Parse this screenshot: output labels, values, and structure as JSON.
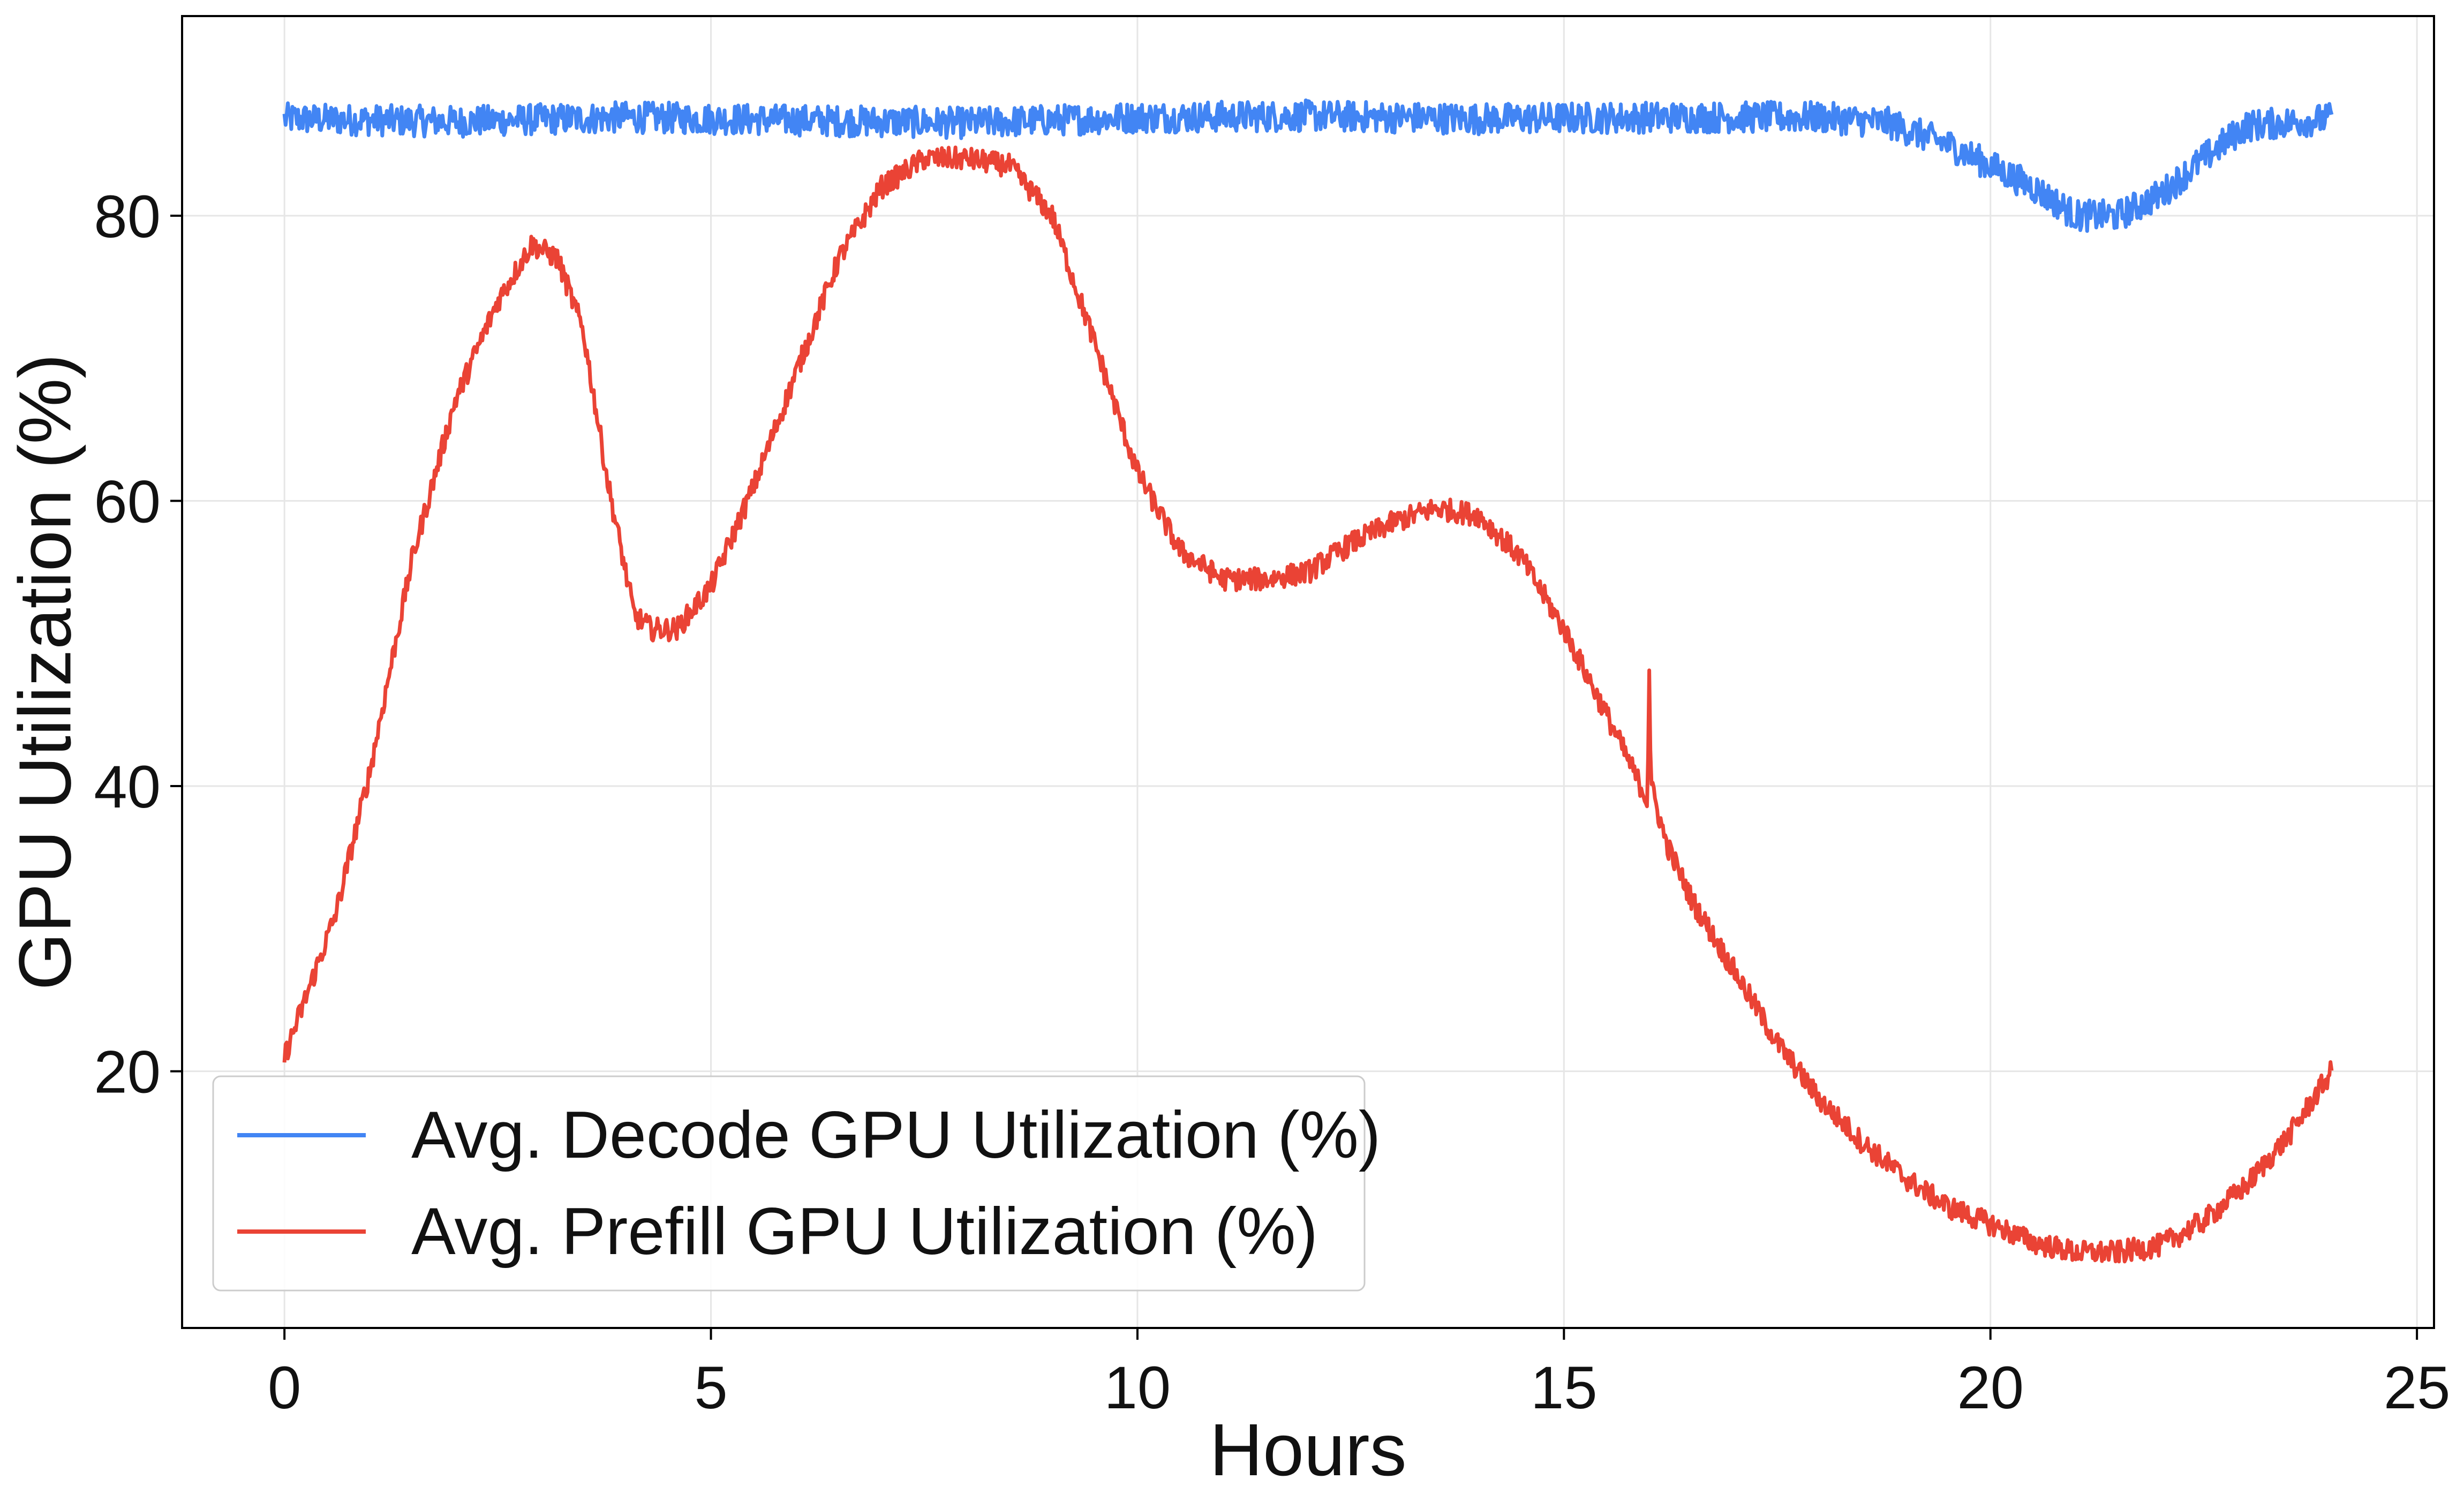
{
  "chart_data": {
    "type": "line",
    "title": "",
    "xlabel": "Hours",
    "ylabel": "GPU Utilization (%)",
    "xlim": [
      -1.2,
      25.2
    ],
    "ylim": [
      2,
      94
    ],
    "xticks": [
      0,
      5,
      10,
      15,
      20,
      25
    ],
    "yticks": [
      20,
      40,
      60,
      80
    ],
    "xtick_labels": [
      "0",
      "5",
      "10",
      "15",
      "20",
      "25"
    ],
    "ytick_labels": [
      "20",
      "40",
      "60",
      "80"
    ],
    "grid": true,
    "legend_position": "lower-left",
    "series": [
      {
        "name": "Avg. Decode GPU Utilization (%)",
        "color": "#4285f4",
        "noise": 1.1,
        "x": [
          0,
          2,
          4,
          6,
          8,
          10,
          12,
          14,
          16,
          18,
          18.8,
          19.5,
          20,
          20.5,
          21,
          21.5,
          22,
          22.5,
          23,
          24
        ],
        "y": [
          86.8,
          86.6,
          86.9,
          86.7,
          86.5,
          86.9,
          87,
          86.8,
          86.9,
          86.9,
          86.5,
          85,
          83.5,
          82,
          80,
          80,
          81.5,
          84,
          86.3,
          86.8
        ]
      },
      {
        "name": "Avg. Prefill GPU Utilization (%)",
        "color": "#ea4335",
        "noise": 0.8,
        "x": [
          0,
          0.3,
          0.6,
          1,
          1.5,
          2,
          2.5,
          2.9,
          3.2,
          3.5,
          3.8,
          4.1,
          4.3,
          4.6,
          5,
          5.5,
          6,
          6.5,
          7,
          7.5,
          8,
          8.5,
          9,
          9.5,
          10,
          10.5,
          11,
          11.5,
          12,
          12.5,
          13,
          13.5,
          14,
          14.5,
          15,
          15.5,
          15.98,
          16.0,
          16.02,
          16.2,
          16.5,
          17,
          17.5,
          18,
          18.5,
          19,
          19.5,
          20,
          20.5,
          21,
          21.5,
          22,
          22.5,
          23,
          23.5,
          24
        ],
        "y": [
          21,
          26,
          31,
          41,
          56,
          67,
          74,
          78,
          77,
          72,
          61,
          52,
          51,
          51,
          54,
          61,
          69,
          77,
          82,
          84,
          84,
          83.5,
          80,
          71,
          62,
          56.5,
          54.5,
          54.5,
          55,
          57,
          58.5,
          59.5,
          59,
          56,
          51,
          45,
          39,
          48.5,
          40,
          36,
          32,
          27,
          22,
          18,
          15,
          12.5,
          10.5,
          9.3,
          8,
          7.3,
          7.3,
          7.8,
          9.5,
          12,
          15.5,
          20
        ]
      }
    ]
  }
}
